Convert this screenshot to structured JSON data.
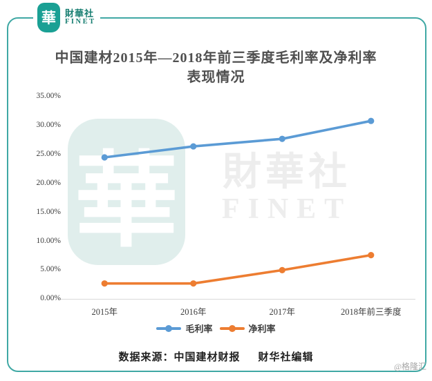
{
  "brand": {
    "logo_char": "華",
    "logo_name_cn": "財華社",
    "logo_name_en": "FINET",
    "brand_teal": "#1aa094",
    "frame_teal": "#3fa8a4"
  },
  "watermark": {
    "char": "華",
    "text_cn": "財華社",
    "text_en": "FINET"
  },
  "chart_data": {
    "type": "line",
    "title_line1": "中国建材2015年—2018年前三季度毛利率及净利率",
    "title_line2": "表现情况",
    "categories": [
      "2015年",
      "2016年",
      "2017年",
      "2018年前三季度"
    ],
    "series": [
      {
        "name": "毛利率",
        "color": "#5b9bd5",
        "values": [
          24.5,
          26.4,
          27.7,
          30.8
        ]
      },
      {
        "name": "净利率",
        "color": "#ed7d31",
        "values": [
          2.7,
          2.7,
          5.0,
          7.6
        ]
      }
    ],
    "ylim": [
      0,
      35
    ],
    "ytick_values": [
      35,
      30,
      25,
      20,
      15,
      10,
      5,
      0
    ],
    "ytick_labels": [
      "35.00%",
      "30.00%",
      "25.00%",
      "20.00%",
      "15.00%",
      "10.00%",
      "5.00%",
      "0.00%"
    ],
    "grid": false,
    "legend_position": "bottom",
    "axis_line_color": "#d9d9d9"
  },
  "footer": {
    "source": "数据来源：中国建材财报",
    "editor": "财华社编辑"
  },
  "credit": "@格隆汇"
}
